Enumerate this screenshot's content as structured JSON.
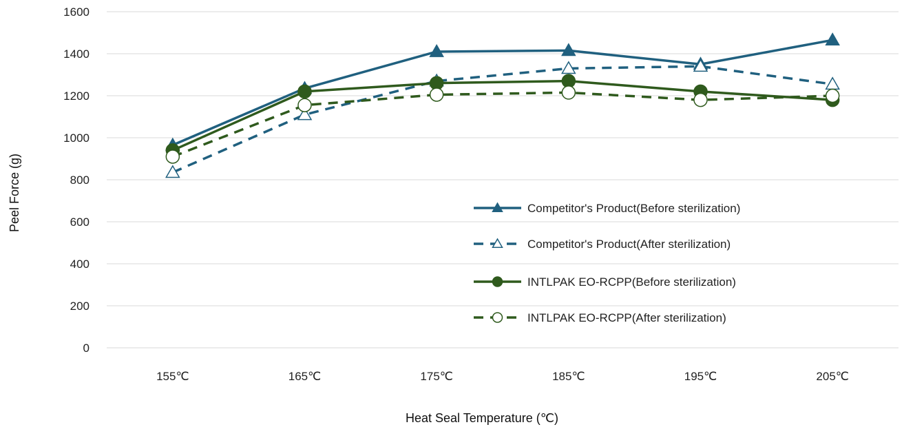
{
  "chart_data": {
    "type": "line",
    "title": "",
    "xlabel": "Heat Seal Temperature (℃)",
    "ylabel": "Peel Force (g)",
    "categories": [
      "155℃",
      "165℃",
      "175℃",
      "185℃",
      "195℃",
      "205℃"
    ],
    "ylim": [
      0,
      1600
    ],
    "yticks": [
      0,
      200,
      400,
      600,
      800,
      1000,
      1200,
      1400,
      1600
    ],
    "grid": "horizontal",
    "legend_position": "center-right",
    "series": [
      {
        "name": "Competitor's Product(Before sterilization)",
        "values": [
          965,
          1235,
          1410,
          1415,
          1350,
          1465
        ],
        "color": "#20607f",
        "line_style": "solid",
        "marker": "filled-triangle"
      },
      {
        "name": "Competitor's Product(After sterilization)",
        "values": [
          835,
          1110,
          1270,
          1330,
          1340,
          1255
        ],
        "color": "#20607f",
        "line_style": "dashed",
        "marker": "open-triangle"
      },
      {
        "name": "INTLPAK EO-RCPP(Before sterilization)",
        "values": [
          940,
          1220,
          1260,
          1270,
          1220,
          1180
        ],
        "color": "#2f5a1d",
        "line_style": "solid",
        "marker": "filled-circle"
      },
      {
        "name": "INTLPAK EO-RCPP(After sterilization)",
        "values": [
          910,
          1155,
          1205,
          1215,
          1180,
          1200
        ],
        "color": "#2f5a1d",
        "line_style": "dashed",
        "marker": "open-circle"
      }
    ]
  }
}
